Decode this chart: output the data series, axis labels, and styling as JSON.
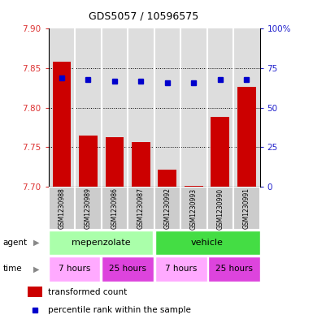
{
  "title": "GDS5057 / 10596575",
  "samples": [
    "GSM1230988",
    "GSM1230989",
    "GSM1230986",
    "GSM1230987",
    "GSM1230992",
    "GSM1230993",
    "GSM1230990",
    "GSM1230991"
  ],
  "transformed_counts": [
    7.858,
    7.765,
    7.763,
    7.756,
    7.722,
    7.701,
    7.788,
    7.826
  ],
  "percentile_ranks": [
    69,
    68,
    67,
    67,
    66,
    66,
    68,
    68
  ],
  "ylim_left": [
    7.7,
    7.9
  ],
  "ylim_right": [
    0,
    100
  ],
  "yticks_left": [
    7.7,
    7.75,
    7.8,
    7.85,
    7.9
  ],
  "yticks_right": [
    0,
    25,
    50,
    75,
    100
  ],
  "bar_color": "#cc0000",
  "dot_color": "#0000cc",
  "bar_bottom": 7.7,
  "agent_labels": [
    "mepenzolate",
    "vehicle"
  ],
  "agent_color_light": "#aaffaa",
  "agent_color_dark": "#44dd44",
  "time_labels": [
    "7 hours",
    "25 hours",
    "7 hours",
    "25 hours"
  ],
  "time_color_light": "#ffaaff",
  "time_color_dark": "#dd44dd",
  "legend_bar_label": "transformed count",
  "legend_dot_label": "percentile rank within the sample",
  "plot_bg_color": "#dddddd",
  "left_tick_color": "#dd3333",
  "right_tick_color": "#2222cc"
}
